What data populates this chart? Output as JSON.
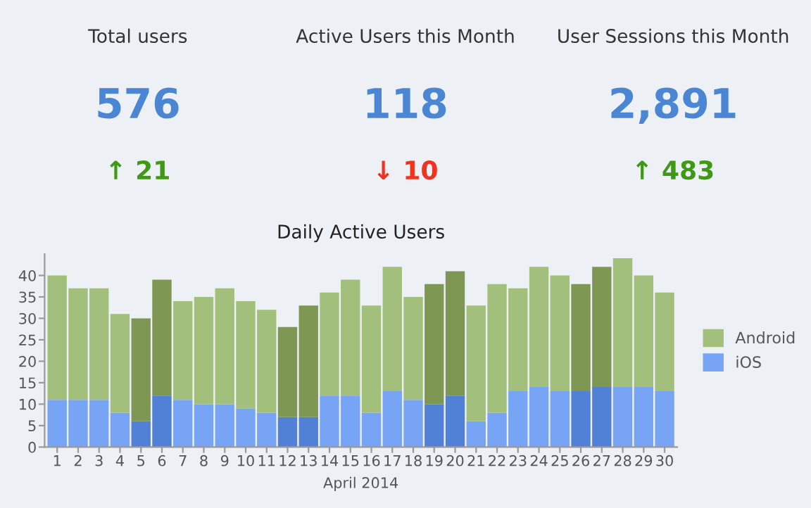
{
  "chart_data": [
    {
      "type": "other",
      "title": "Total users",
      "annotations": [
        "576",
        "↑ 21"
      ],
      "colors": [
        "#4a86d4",
        "#3f9a13"
      ]
    },
    {
      "type": "other",
      "title": "Active Users this Month",
      "annotations": [
        "118",
        "↓ 10"
      ],
      "colors": [
        "#4a86d4",
        "#f0321e"
      ]
    },
    {
      "type": "other",
      "title": "User Sessions this Month",
      "annotations": [
        "2,891",
        "↑ 483"
      ],
      "colors": [
        "#4a86d4",
        "#3f9a13"
      ]
    },
    {
      "type": "bar",
      "title": "Daily Active Users",
      "xlabel": "April 2014",
      "stacked": true,
      "legend": "right",
      "grid": false,
      "categories": [
        "1",
        "2",
        "3",
        "4",
        "5",
        "6",
        "7",
        "8",
        "9",
        "10",
        "11",
        "12",
        "13",
        "14",
        "15",
        "16",
        "17",
        "18",
        "19",
        "20",
        "21",
        "22",
        "23",
        "24",
        "25",
        "26",
        "27",
        "28",
        "29",
        "30"
      ],
      "ylim": [
        0,
        45
      ],
      "yticks": [
        0,
        5,
        10,
        15,
        20,
        25,
        30,
        35,
        40
      ],
      "series": [
        {
          "name": "iOS",
          "color": "#78a4f6",
          "values": [
            11,
            11,
            11,
            8,
            6,
            12,
            11,
            10,
            10,
            9,
            8,
            7,
            7,
            12,
            12,
            8,
            13,
            11,
            10,
            12,
            6,
            8,
            13,
            14,
            13,
            13,
            14,
            14,
            14,
            13
          ],
          "colors": [
            "#78a4f6",
            "#78a4f6",
            "#78a4f6",
            "#78a4f6",
            "#5081d6",
            "#5081d6",
            "#78a4f6",
            "#78a4f6",
            "#78a4f6",
            "#78a4f6",
            "#78a4f6",
            "#5081d6",
            "#5081d6",
            "#78a4f6",
            "#78a4f6",
            "#78a4f6",
            "#78a4f6",
            "#78a4f6",
            "#5081d6",
            "#5081d6",
            "#78a4f6",
            "#78a4f6",
            "#78a4f6",
            "#78a4f6",
            "#78a4f6",
            "#5081d6",
            "#5081d6",
            "#78a4f6",
            "#78a4f6",
            "#78a4f6"
          ]
        },
        {
          "name": "Android",
          "color": "#a2c07c",
          "values": [
            29,
            26,
            26,
            23,
            24,
            27,
            23,
            25,
            27,
            25,
            24,
            21,
            26,
            24,
            27,
            25,
            29,
            24,
            28,
            29,
            27,
            30,
            24,
            28,
            27,
            25,
            28,
            30,
            26,
            23
          ],
          "colors": [
            "#a2c07c",
            "#a2c07c",
            "#a2c07c",
            "#a2c07c",
            "#7e9853",
            "#7e9853",
            "#a2c07c",
            "#a2c07c",
            "#a2c07c",
            "#a2c07c",
            "#a2c07c",
            "#7e9853",
            "#7e9853",
            "#a2c07c",
            "#a2c07c",
            "#a2c07c",
            "#a2c07c",
            "#a2c07c",
            "#7e9853",
            "#7e9853",
            "#a2c07c",
            "#a2c07c",
            "#a2c07c",
            "#a2c07c",
            "#a2c07c",
            "#7e9853",
            "#7e9853",
            "#a2c07c",
            "#a2c07c",
            "#a2c07c"
          ]
        }
      ]
    }
  ]
}
